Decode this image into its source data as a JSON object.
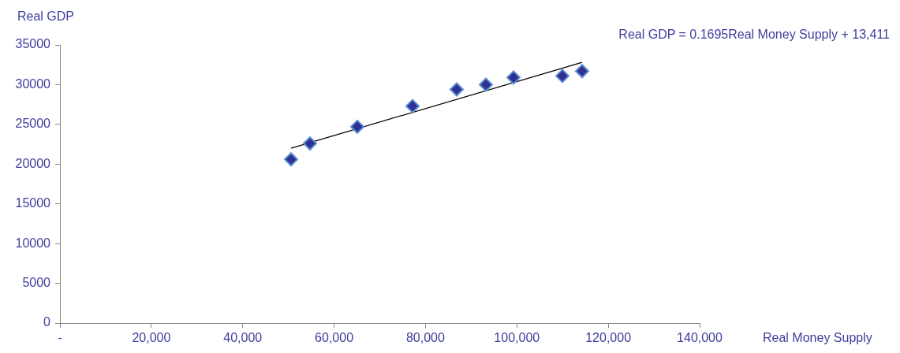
{
  "chart_data": {
    "type": "scatter",
    "xlabel": "Real Money Supply",
    "ylabel": "Real GDP",
    "annotations": [
      "Real GDP = 0.1695Real Money Supply + 13,411"
    ],
    "series": [
      {
        "type": "scatter",
        "color": "#2e3192",
        "marker": "diamond",
        "x": [
          50580,
          54720,
          65080,
          77170,
          86830,
          93220,
          99260,
          109960,
          114280
        ],
        "values": [
          20600,
          22600,
          24700,
          27300,
          29400,
          30000,
          30900,
          31100,
          31700
        ]
      },
      {
        "type": "line",
        "color": "#000000",
        "marker": "none",
        "line_style": "solid",
        "x": [
          50580,
          114280
        ],
        "values": [
          22000,
          32800
        ]
      }
    ],
    "xlim": [
      0,
      140000
    ],
    "xticks": [
      {
        "value": 0,
        "label": "-"
      },
      {
        "value": 20000,
        "label": "20,000"
      },
      {
        "value": 40000,
        "label": "40,000"
      },
      {
        "value": 60000,
        "label": "60,000"
      },
      {
        "value": 80000,
        "label": "80,000"
      },
      {
        "value": 100000,
        "label": "100,000"
      },
      {
        "value": 120000,
        "label": "120,000"
      },
      {
        "value": 140000,
        "label": "140,000"
      }
    ],
    "ylim": [
      0,
      35000
    ],
    "yticks": [
      0,
      5000,
      10000,
      15000,
      20000,
      25000,
      30000,
      35000
    ],
    "grid": false,
    "legend": false
  }
}
